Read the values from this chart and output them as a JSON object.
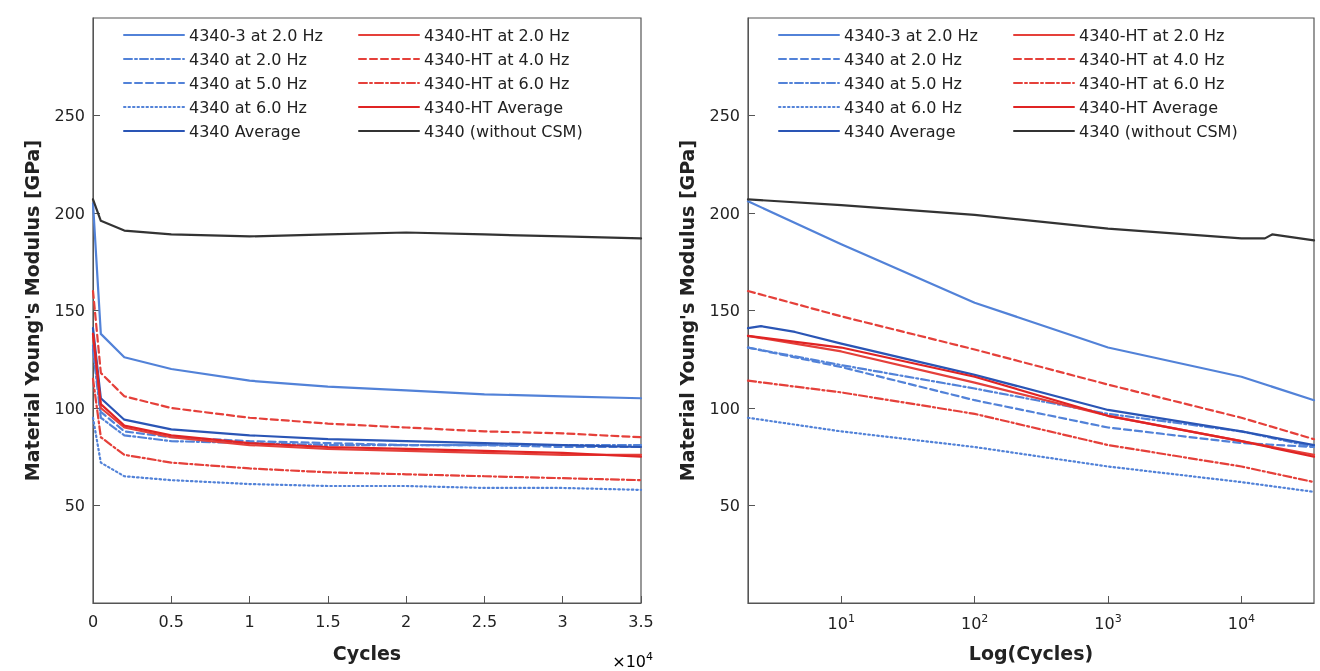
{
  "chart_data": [
    {
      "type": "line",
      "xlabel": "Cycles",
      "ylabel": "Material Young's Modulus [GPa]",
      "annotations": [
        "×10$^{4}$"
      ],
      "x": [
        0,
        0.05,
        0.2,
        0.5,
        1,
        1.5,
        2,
        2.5,
        3,
        3.5
      ],
      "xlim": [
        0,
        3.5
      ],
      "xticks": [
        0,
        0.5,
        1,
        1.5,
        2,
        2.5,
        3,
        3.5
      ],
      "ylim": [
        0,
        300
      ],
      "yticks": [
        50,
        100,
        150,
        200,
        250
      ],
      "grid": false,
      "legend": "top",
      "series": [
        {
          "name": "4340-3 at 2.0 Hz",
          "color": "#5282d8",
          "line_style": "solid",
          "values": [
            205,
            138,
            126,
            120,
            114,
            111,
            109,
            107,
            106,
            105
          ]
        },
        {
          "name": "4340 at 2.0 Hz",
          "color": "#5282d8",
          "line_style": "dashdot",
          "values": [
            130,
            95,
            86,
            83,
            82,
            81,
            81,
            81,
            81,
            81
          ]
        },
        {
          "name": "4340 at 5.0 Hz",
          "color": "#5282d8",
          "line_style": "dashed",
          "values": [
            132,
            98,
            88,
            85,
            83,
            82,
            81,
            81,
            80,
            80
          ]
        },
        {
          "name": "4340 at 6.0 Hz",
          "color": "#5282d8",
          "line_style": "dotted",
          "values": [
            95,
            72,
            65,
            63,
            61,
            60,
            60,
            59,
            59,
            58
          ]
        },
        {
          "name": "4340 Average",
          "color": "#2a55b5",
          "line_style": "solid",
          "values": [
            141,
            105,
            94,
            89,
            86,
            84,
            83,
            82,
            81,
            80
          ]
        },
        {
          "name": "4340-HT at 2.0 Hz",
          "color": "#e5403a",
          "line_style": "solid",
          "values": [
            138,
            100,
            90,
            85,
            81,
            79,
            78,
            77,
            76,
            76
          ]
        },
        {
          "name": "4340-HT at 4.0 Hz",
          "color": "#e5403a",
          "line_style": "dashed",
          "values": [
            160,
            118,
            106,
            100,
            95,
            92,
            90,
            88,
            87,
            85
          ]
        },
        {
          "name": "4340-HT at 6.0 Hz",
          "color": "#e5403a",
          "line_style": "dashdot",
          "values": [
            115,
            85,
            76,
            72,
            69,
            67,
            66,
            65,
            64,
            63
          ]
        },
        {
          "name": "4340-HT Average",
          "color": "#e02424",
          "line_style": "solid",
          "values": [
            138,
            102,
            91,
            86,
            82,
            80,
            79,
            78,
            77,
            75
          ]
        },
        {
          "name": "4340 (without CSM)",
          "color": "#333333",
          "line_style": "solid",
          "values": [
            207,
            196,
            191,
            189,
            188,
            189,
            190,
            189,
            188,
            187
          ]
        }
      ]
    },
    {
      "type": "line",
      "xlabel": "Log(Cycles)",
      "ylabel": "Material Young's Modulus [GPa]",
      "log": "x",
      "x": [
        2,
        10,
        100,
        1000,
        10000,
        35000
      ],
      "xlim": [
        2,
        35000
      ],
      "xticks": [
        {
          "value": 10,
          "label": "10$^{1}$"
        },
        {
          "value": 100,
          "label": "10$^{2}$"
        },
        {
          "value": 1000,
          "label": "10$^{3}$"
        },
        {
          "value": 10000,
          "label": "10$^{4}$"
        }
      ],
      "ylim": [
        0,
        300
      ],
      "yticks": [
        50,
        100,
        150,
        200,
        250
      ],
      "grid": false,
      "legend": "top",
      "series": [
        {
          "name": "4340-3 at 2.0 Hz",
          "color": "#5282d8",
          "line_style": "solid",
          "values": [
            206,
            184,
            154,
            131,
            116,
            104
          ]
        },
        {
          "name": "4340 at 2.0 Hz",
          "color": "#5282d8",
          "line_style": "dashed",
          "values": [
            131,
            121,
            104,
            90,
            82,
            80
          ]
        },
        {
          "name": "4340 at 5.0 Hz",
          "color": "#5282d8",
          "line_style": "dashdot",
          "values": [
            131,
            122,
            110,
            97,
            88,
            80
          ]
        },
        {
          "name": "4340 at 6.0 Hz",
          "color": "#5282d8",
          "line_style": "dotted",
          "values": [
            95,
            88,
            80,
            70,
            62,
            57
          ]
        },
        {
          "name": "4340 Average",
          "color": "#2a55b5",
          "line_style": "solid",
          "x": [
            2,
            2.5,
            4.5,
            10,
            100,
            1000,
            10000,
            35000
          ],
          "values": [
            141,
            142,
            139,
            133,
            117,
            99,
            88,
            81
          ]
        },
        {
          "name": "4340-HT at 2.0 Hz",
          "color": "#e5403a",
          "line_style": "solid",
          "values": [
            137,
            129,
            113,
            96,
            83,
            76
          ]
        },
        {
          "name": "4340-HT at 4.0 Hz",
          "color": "#e5403a",
          "line_style": "dashed",
          "values": [
            160,
            147,
            130,
            112,
            95,
            84
          ]
        },
        {
          "name": "4340-HT at 6.0 Hz",
          "color": "#e5403a",
          "line_style": "dashdot",
          "values": [
            114,
            108,
            97,
            81,
            70,
            62
          ]
        },
        {
          "name": "4340-HT Average",
          "color": "#e02424",
          "line_style": "solid",
          "values": [
            137,
            131,
            116,
            96,
            83,
            75
          ]
        },
        {
          "name": "4340 (without CSM)",
          "color": "#333333",
          "line_style": "solid",
          "x": [
            2,
            10,
            100,
            1000,
            10000,
            15000,
            17000,
            35000
          ],
          "values": [
            207,
            204,
            199,
            192,
            187,
            187,
            189,
            186
          ]
        }
      ]
    }
  ]
}
